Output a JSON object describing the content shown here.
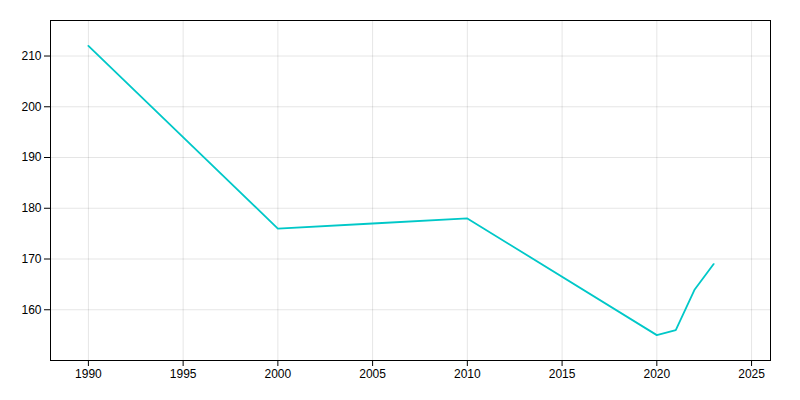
{
  "chart_data": {
    "type": "line",
    "x": [
      1990,
      2000,
      2005,
      2010,
      2020,
      2021,
      2022,
      2023
    ],
    "values": [
      212,
      176,
      177,
      178,
      155,
      156,
      164,
      169
    ],
    "color": "#00C8C8",
    "xlim": [
      1988,
      2026
    ],
    "ylim": [
      150,
      217
    ],
    "xticks": [
      1990,
      1995,
      2000,
      2005,
      2010,
      2015,
      2020,
      2025
    ],
    "yticks": [
      160,
      170,
      180,
      190,
      200,
      210
    ],
    "grid": true
  }
}
